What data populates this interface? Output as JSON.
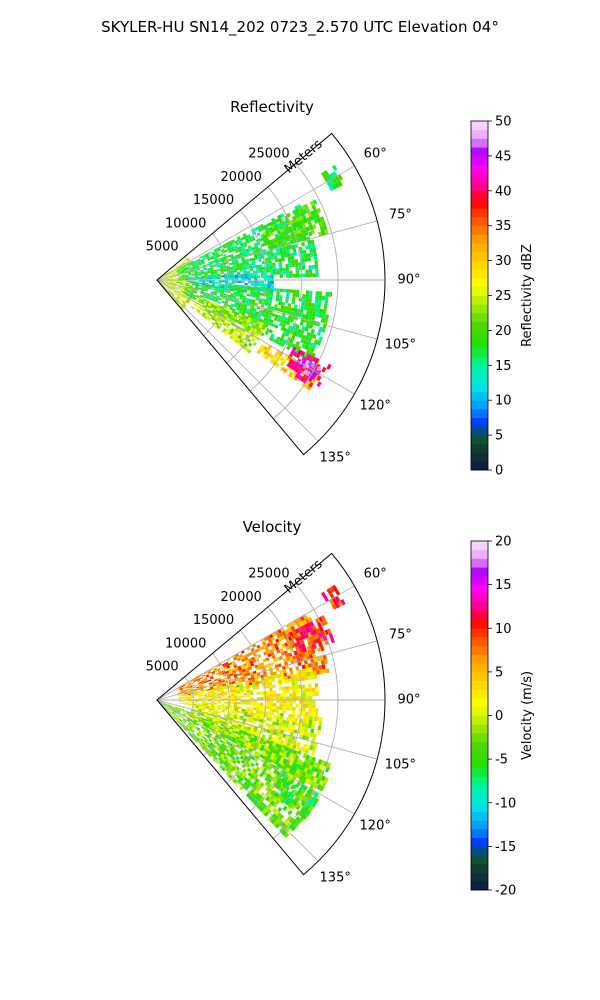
{
  "figure": {
    "title": "SKYLER-HU  SN14_202  0723_2.570 UTC Elevation 04°"
  },
  "chart_data": [
    {
      "type": "heatmap",
      "subtype": "polar-sector (PPI radar scan)",
      "title": "Reflectivity",
      "range_axis_label": "Meters",
      "range_ticks": [
        5000,
        10000,
        15000,
        20000,
        25000
      ],
      "range_tick_labels": [
        "5000",
        "10000",
        "15000",
        "20000",
        "25000"
      ],
      "range_lim": [
        0,
        31500
      ],
      "azimuth_ticks_deg": [
        60,
        75,
        90,
        105,
        120,
        135
      ],
      "azimuth_tick_labels": [
        "60°",
        "75°",
        "90°",
        "105°",
        "120°",
        "135°"
      ],
      "azimuth_lim_deg": [
        50,
        140
      ],
      "grid": true,
      "colorbar": {
        "label": "Reflectivity dBZ",
        "ticks": [
          0,
          5,
          10,
          15,
          20,
          25,
          30,
          35,
          40,
          45,
          50
        ],
        "tick_labels": [
          "0",
          "5",
          "10",
          "15",
          "20",
          "25",
          "30",
          "35",
          "40",
          "45",
          "50"
        ],
        "range": [
          0,
          50
        ]
      },
      "echo_regions": [
        {
          "az": [
            55,
            139
          ],
          "range": [
            0,
            5000
          ],
          "value": 25
        },
        {
          "az": [
            62,
            88
          ],
          "range": [
            3000,
            22000
          ],
          "value": 17
        },
        {
          "az": [
            86,
            98
          ],
          "range": [
            4000,
            16000
          ],
          "value": 12
        },
        {
          "az": [
            63,
            75
          ],
          "range": [
            16000,
            24500
          ],
          "value": 20
        },
        {
          "az": [
            94,
            118
          ],
          "range": [
            4000,
            24000
          ],
          "value": 18
        },
        {
          "az": [
            112,
            128
          ],
          "range": [
            6000,
            16000
          ],
          "value": 24
        },
        {
          "az": [
            120,
            126
          ],
          "range": [
            17000,
            26000
          ],
          "value": 30
        },
        {
          "az": [
            116,
            124
          ],
          "range": [
            21000,
            26500
          ],
          "value": 40
        },
        {
          "az": [
            118,
            122
          ],
          "range": [
            23000,
            25500
          ],
          "value": 46
        },
        {
          "az": [
            57,
            62
          ],
          "range": [
            27000,
            29000
          ],
          "value": 18
        }
      ]
    },
    {
      "type": "heatmap",
      "subtype": "polar-sector (PPI radar scan)",
      "title": "Velocity",
      "range_axis_label": "Meters",
      "range_ticks": [
        5000,
        10000,
        15000,
        20000,
        25000
      ],
      "range_tick_labels": [
        "5000",
        "10000",
        "15000",
        "20000",
        "25000"
      ],
      "range_lim": [
        0,
        31500
      ],
      "azimuth_ticks_deg": [
        60,
        75,
        90,
        105,
        120,
        135
      ],
      "azimuth_tick_labels": [
        "60°",
        "75°",
        "90°",
        "105°",
        "120°",
        "135°"
      ],
      "azimuth_lim_deg": [
        50,
        140
      ],
      "grid": true,
      "colorbar": {
        "label": "Velocity (m/s)",
        "ticks": [
          -20,
          -15,
          -10,
          -5,
          0,
          5,
          10,
          15,
          20
        ],
        "tick_labels": [
          "-20",
          "-15",
          "-10",
          "-5",
          "0",
          "5",
          "10",
          "15",
          "20"
        ],
        "range": [
          -20,
          20
        ]
      },
      "echo_regions": [
        {
          "az": [
            60,
            80
          ],
          "range": [
            3000,
            24000
          ],
          "value": 7
        },
        {
          "az": [
            63,
            72
          ],
          "range": [
            20000,
            25500
          ],
          "value": 10
        },
        {
          "az": [
            78,
            98
          ],
          "range": [
            3000,
            22000
          ],
          "value": 2
        },
        {
          "az": [
            96,
            118
          ],
          "range": [
            5000,
            23000
          ],
          "value": 0
        },
        {
          "az": [
            110,
            136
          ],
          "range": [
            0,
            26000
          ],
          "value": -3
        },
        {
          "az": [
            120,
            128
          ],
          "range": [
            20000,
            26000
          ],
          "value": -5
        },
        {
          "az": [
            57,
            62
          ],
          "range": [
            27000,
            29000
          ],
          "value": 10
        }
      ]
    }
  ]
}
